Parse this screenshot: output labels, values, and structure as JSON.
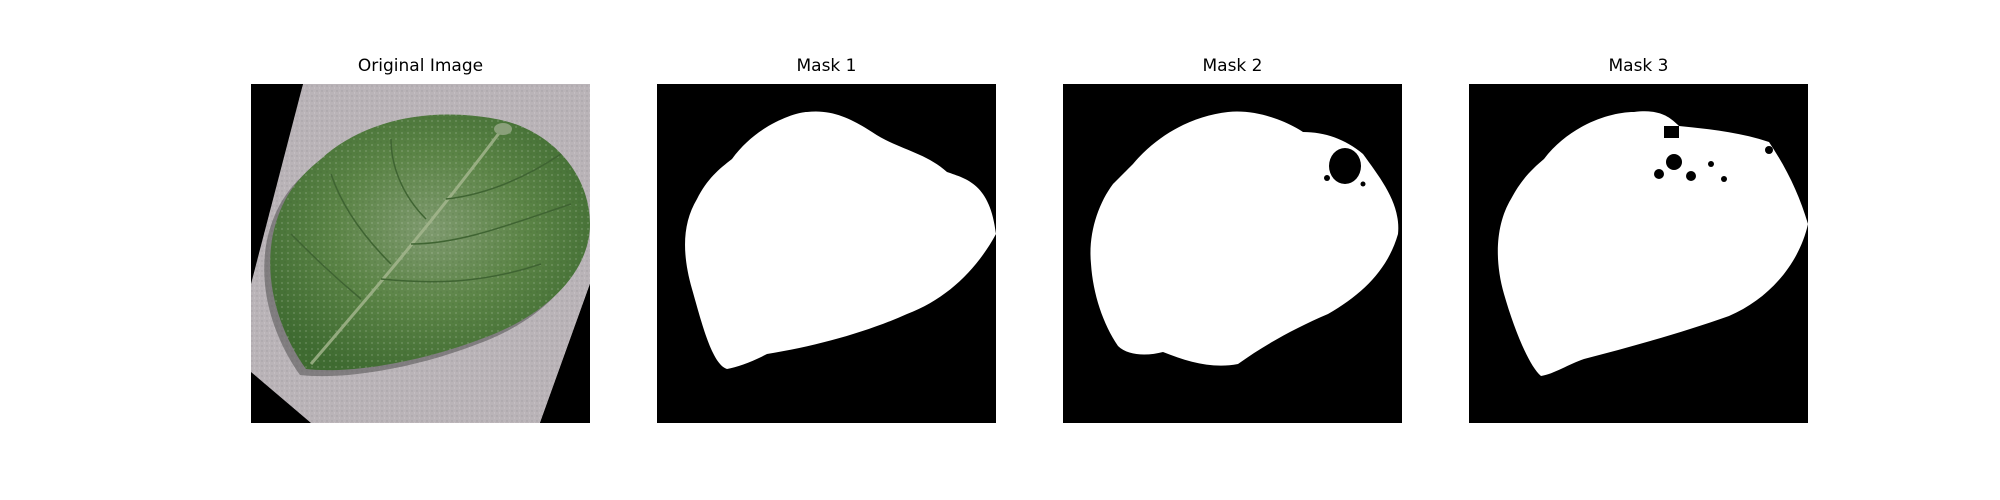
{
  "figure": {
    "panels": [
      {
        "title": "Original Image"
      },
      {
        "title": "Mask 1"
      },
      {
        "title": "Mask 2"
      },
      {
        "title": "Mask 3"
      }
    ]
  },
  "colors": {
    "background": "#ffffff",
    "mask_background": "#000000",
    "mask_foreground": "#ffffff",
    "leaf_green": "#4e7a3e",
    "photo_background": "#b9b3b6"
  }
}
